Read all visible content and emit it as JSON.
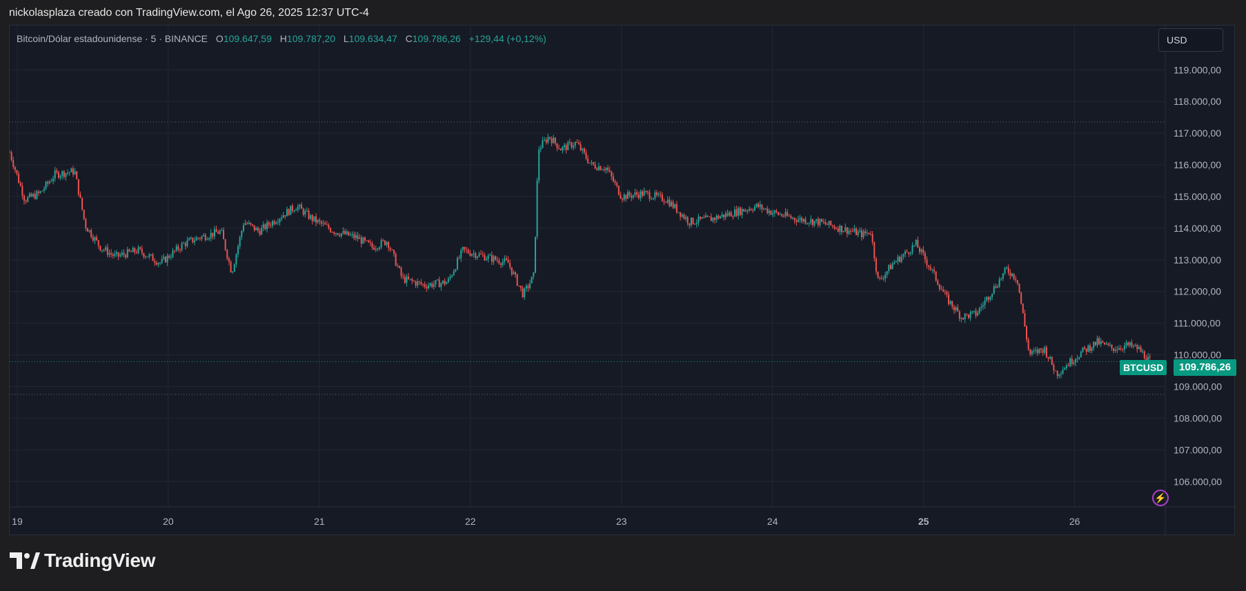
{
  "caption": "nickolasplaza creado con TradingView.com, el Ago 26, 2025 12:37 UTC-4",
  "legend": {
    "symbol": "Bitcoin/Dólar estadounidense · 5 · BINANCE",
    "open_label": "O",
    "open": "109.647,59",
    "high_label": "H",
    "high": "109.787,20",
    "low_label": "L",
    "low": "109.634,47",
    "close_label": "C",
    "close": "109.786,26",
    "change": "+129,44 (+0,12%)"
  },
  "currency": "USD",
  "last_price": {
    "symbol": "BTCUSD",
    "value": "109.786,26"
  },
  "brand": "TradingView",
  "colors": {
    "up": "#26a69a",
    "down": "#ef5350",
    "tag": "#089981",
    "background": "#161a25",
    "grid": "#232733"
  },
  "chart_data": {
    "type": "candlestick",
    "x_ticks": [
      {
        "label": "19",
        "day": 19
      },
      {
        "label": "20",
        "day": 20
      },
      {
        "label": "21",
        "day": 21
      },
      {
        "label": "22",
        "day": 22
      },
      {
        "label": "23",
        "day": 23
      },
      {
        "label": "24",
        "day": 24
      },
      {
        "label": "25",
        "day": 25
      },
      {
        "label": "26",
        "day": 26
      }
    ],
    "y_ticks": [
      {
        "label": "106.000,00",
        "value": 106000
      },
      {
        "label": "107.000,00",
        "value": 107000
      },
      {
        "label": "108.000,00",
        "value": 108000
      },
      {
        "label": "109.000,00",
        "value": 109000
      },
      {
        "label": "110.000,00",
        "value": 110000
      },
      {
        "label": "111.000,00",
        "value": 111000
      },
      {
        "label": "112.000,00",
        "value": 112000
      },
      {
        "label": "113.000,00",
        "value": 113000
      },
      {
        "label": "114.000,00",
        "value": 114000
      },
      {
        "label": "115.000,00",
        "value": 115000
      },
      {
        "label": "116.000,00",
        "value": 116000
      },
      {
        "label": "117.000,00",
        "value": 117000
      },
      {
        "label": "118.000,00",
        "value": 118000
      },
      {
        "label": "119.000,00",
        "value": 119000
      }
    ],
    "xlim": [
      18.95,
      26.6
    ],
    "ylim": [
      105200,
      120400
    ],
    "reference_lines": [
      117350,
      108750
    ],
    "last_value": 109786.26,
    "series": [
      {
        "day": 18.95,
        "close": 116400
      },
      {
        "day": 19.05,
        "close": 114900
      },
      {
        "day": 19.15,
        "close": 115100
      },
      {
        "day": 19.25,
        "close": 115700
      },
      {
        "day": 19.38,
        "close": 115800
      },
      {
        "day": 19.45,
        "close": 114100
      },
      {
        "day": 19.55,
        "close": 113400
      },
      {
        "day": 19.65,
        "close": 113100
      },
      {
        "day": 19.8,
        "close": 113300
      },
      {
        "day": 19.95,
        "close": 112900
      },
      {
        "day": 20.1,
        "close": 113500
      },
      {
        "day": 20.2,
        "close": 113700
      },
      {
        "day": 20.35,
        "close": 113900
      },
      {
        "day": 20.42,
        "close": 112600
      },
      {
        "day": 20.5,
        "close": 114200
      },
      {
        "day": 20.6,
        "close": 113900
      },
      {
        "day": 20.75,
        "close": 114400
      },
      {
        "day": 20.85,
        "close": 114700
      },
      {
        "day": 20.95,
        "close": 114300
      },
      {
        "day": 21.1,
        "close": 113900
      },
      {
        "day": 21.25,
        "close": 113700
      },
      {
        "day": 21.35,
        "close": 113400
      },
      {
        "day": 21.45,
        "close": 113600
      },
      {
        "day": 21.55,
        "close": 112400
      },
      {
        "day": 21.7,
        "close": 112200
      },
      {
        "day": 21.85,
        "close": 112300
      },
      {
        "day": 21.95,
        "close": 113300
      },
      {
        "day": 22.1,
        "close": 113100
      },
      {
        "day": 22.25,
        "close": 112900
      },
      {
        "day": 22.35,
        "close": 111900
      },
      {
        "day": 22.42,
        "close": 112500
      },
      {
        "day": 22.45,
        "close": 116500
      },
      {
        "day": 22.52,
        "close": 116900
      },
      {
        "day": 22.6,
        "close": 116500
      },
      {
        "day": 22.7,
        "close": 116700
      },
      {
        "day": 22.8,
        "close": 116000
      },
      {
        "day": 22.9,
        "close": 115900
      },
      {
        "day": 23.0,
        "close": 115000
      },
      {
        "day": 23.15,
        "close": 115100
      },
      {
        "day": 23.3,
        "close": 114900
      },
      {
        "day": 23.45,
        "close": 114200
      },
      {
        "day": 23.6,
        "close": 114300
      },
      {
        "day": 23.75,
        "close": 114500
      },
      {
        "day": 23.9,
        "close": 114700
      },
      {
        "day": 24.0,
        "close": 114500
      },
      {
        "day": 24.15,
        "close": 114300
      },
      {
        "day": 24.3,
        "close": 114200
      },
      {
        "day": 24.45,
        "close": 114000
      },
      {
        "day": 24.6,
        "close": 113800
      },
      {
        "day": 24.65,
        "close": 113900
      },
      {
        "day": 24.7,
        "close": 112300
      },
      {
        "day": 24.8,
        "close": 112900
      },
      {
        "day": 24.88,
        "close": 113200
      },
      {
        "day": 24.95,
        "close": 113500
      },
      {
        "day": 25.05,
        "close": 112700
      },
      {
        "day": 25.15,
        "close": 111800
      },
      {
        "day": 25.25,
        "close": 111200
      },
      {
        "day": 25.35,
        "close": 111300
      },
      {
        "day": 25.45,
        "close": 112000
      },
      {
        "day": 25.55,
        "close": 112700
      },
      {
        "day": 25.62,
        "close": 112400
      },
      {
        "day": 25.7,
        "close": 110000
      },
      {
        "day": 25.8,
        "close": 110200
      },
      {
        "day": 25.88,
        "close": 109400
      },
      {
        "day": 25.95,
        "close": 109700
      },
      {
        "day": 26.05,
        "close": 110100
      },
      {
        "day": 26.15,
        "close": 110400
      },
      {
        "day": 26.25,
        "close": 110200
      },
      {
        "day": 26.35,
        "close": 110300
      },
      {
        "day": 26.42,
        "close": 110200
      },
      {
        "day": 26.5,
        "close": 109786
      }
    ]
  }
}
